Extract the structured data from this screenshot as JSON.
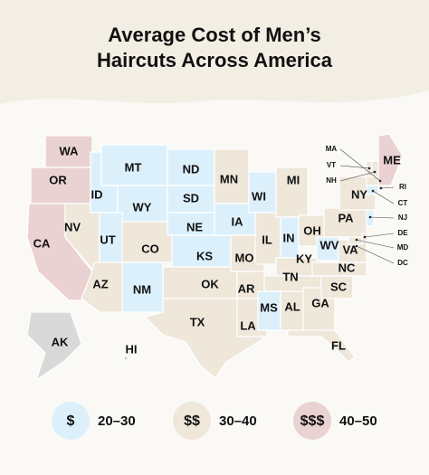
{
  "title": [
    "Average Cost of Men’s",
    "Haircuts Across America"
  ],
  "legend": [
    {
      "symbol": "$",
      "range": "20–30",
      "color": "#dcf0fb"
    },
    {
      "symbol": "$$",
      "range": "30–40",
      "color": "#eee7da"
    },
    {
      "symbol": "$$$",
      "range": "40–50",
      "color": "#ebd2d2"
    }
  ],
  "no_data_color": "#d9d9d9",
  "states": [
    {
      "label": "WA",
      "tier": 2
    },
    {
      "label": "OR",
      "tier": 2
    },
    {
      "label": "CA",
      "tier": 2
    },
    {
      "label": "NV",
      "tier": 1
    },
    {
      "label": "ID",
      "tier": 0
    },
    {
      "label": "MT",
      "tier": 0
    },
    {
      "label": "WY",
      "tier": 0
    },
    {
      "label": "UT",
      "tier": 0
    },
    {
      "label": "CO",
      "tier": 1
    },
    {
      "label": "AZ",
      "tier": 1
    },
    {
      "label": "NM",
      "tier": 0
    },
    {
      "label": "ND",
      "tier": 0
    },
    {
      "label": "SD",
      "tier": 0
    },
    {
      "label": "NE",
      "tier": 0
    },
    {
      "label": "KS",
      "tier": 0
    },
    {
      "label": "OK",
      "tier": 1
    },
    {
      "label": "TX",
      "tier": 1
    },
    {
      "label": "MN",
      "tier": 1
    },
    {
      "label": "IA",
      "tier": 0
    },
    {
      "label": "MO",
      "tier": 1
    },
    {
      "label": "AR",
      "tier": 1
    },
    {
      "label": "LA",
      "tier": 1
    },
    {
      "label": "WI",
      "tier": 0
    },
    {
      "label": "IL",
      "tier": 1
    },
    {
      "label": "MI",
      "tier": 1
    },
    {
      "label": "IN",
      "tier": 0
    },
    {
      "label": "OH",
      "tier": 1
    },
    {
      "label": "KY",
      "tier": 1
    },
    {
      "label": "TN",
      "tier": 1
    },
    {
      "label": "MS",
      "tier": 0
    },
    {
      "label": "AL",
      "tier": 1
    },
    {
      "label": "GA",
      "tier": 1
    },
    {
      "label": "FL",
      "tier": 1
    },
    {
      "label": "SC",
      "tier": 1
    },
    {
      "label": "NC",
      "tier": 1
    },
    {
      "label": "VA",
      "tier": 1
    },
    {
      "label": "WV",
      "tier": 0
    },
    {
      "label": "PA",
      "tier": 1
    },
    {
      "label": "NY",
      "tier": 1
    },
    {
      "label": "ME",
      "tier": 2
    },
    {
      "label": "AK",
      "tier": null
    },
    {
      "label": "HI",
      "tier": null
    },
    {
      "label": "MA",
      "tier": 1
    },
    {
      "label": "VT",
      "tier": 1
    },
    {
      "label": "NH",
      "tier": 1
    },
    {
      "label": "RI",
      "tier": 1
    },
    {
      "label": "CT",
      "tier": 0
    },
    {
      "label": "NJ",
      "tier": 0
    },
    {
      "label": "DE",
      "tier": 1
    },
    {
      "label": "MD",
      "tier": 1
    },
    {
      "label": "DC",
      "tier": 1
    }
  ]
}
